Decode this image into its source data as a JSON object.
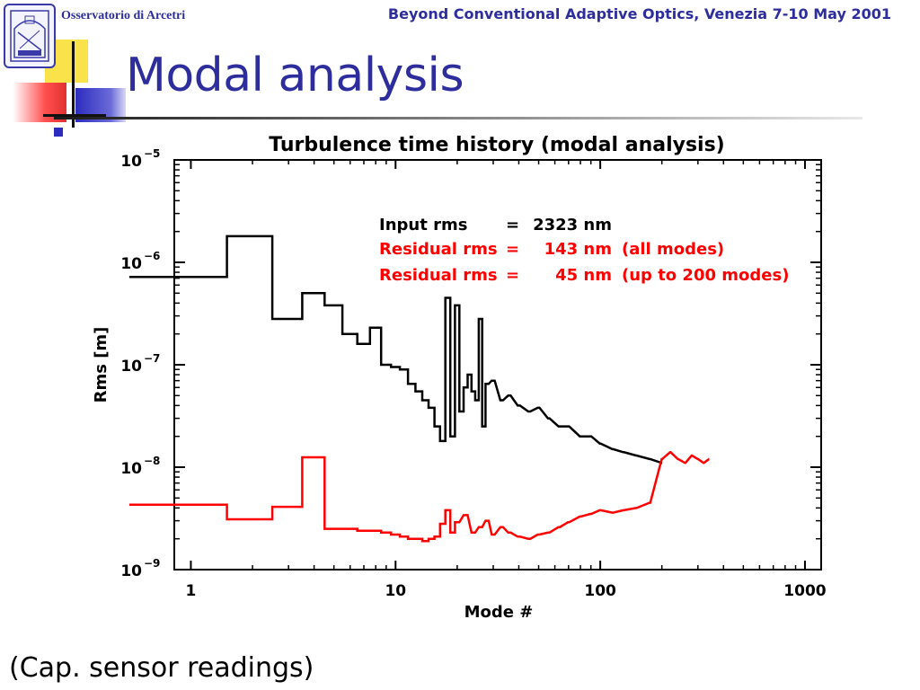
{
  "header": {
    "institution": "Osservatorio di Arcetri",
    "conference": "Beyond Conventional Adaptive Optics, Venezia 7-10 May 2001"
  },
  "slide": {
    "title": "Modal analysis",
    "caption": "(Cap. sensor readings)"
  },
  "colors": {
    "accent": "#2d2d9e",
    "series_input": "#000000",
    "series_residual": "#ff0000"
  },
  "chart_data": {
    "type": "line",
    "title": "Turbulence time history (modal analysis)",
    "xlabel": "Mode #",
    "ylabel": "Rms [m]",
    "x_scale": "log",
    "y_scale": "log",
    "xlim": [
      0.83,
      1200
    ],
    "ylim": [
      1e-09,
      1e-05
    ],
    "x_ticks": [
      1,
      10,
      100,
      1000
    ],
    "x_tick_labels": [
      "1",
      "10",
      "100",
      "1000"
    ],
    "y_ticks": [
      1e-09,
      1e-08,
      1e-07,
      1e-06,
      1e-05
    ],
    "y_tick_labels": [
      {
        "base": "10",
        "exp": "−9"
      },
      {
        "base": "10",
        "exp": "−8"
      },
      {
        "base": "10",
        "exp": "−7"
      },
      {
        "base": "10",
        "exp": "−6"
      },
      {
        "base": "10",
        "exp": "−5"
      }
    ],
    "grid": false,
    "annotations": [
      {
        "label": "Input rms",
        "eq": "=",
        "value": "2323 nm",
        "note": "",
        "color": "#000000"
      },
      {
        "label": "Residual rms",
        "eq": "=",
        "value": "143 nm",
        "note": "(all modes)",
        "color": "#ff0000"
      },
      {
        "label": "Residual rms",
        "eq": "=",
        "value": "45 nm",
        "note": "(up to 200 modes)",
        "color": "#ff0000"
      }
    ],
    "series": [
      {
        "color": "#000000",
        "style": "steps",
        "x": [
          1,
          2,
          3,
          4,
          5,
          6,
          7,
          8,
          9,
          10,
          11,
          12,
          13,
          14,
          15,
          16,
          17,
          18,
          19,
          20,
          21,
          22,
          23,
          24,
          25,
          26,
          27,
          28,
          30,
          33,
          36,
          40,
          45,
          50,
          56,
          63,
          70,
          80,
          90,
          100,
          115,
          130,
          150,
          175,
          200
        ],
        "y": [
          7.2e-07,
          1.8e-06,
          2.8e-07,
          5e-07,
          3.8e-07,
          2e-07,
          1.6e-07,
          2.3e-07,
          1e-07,
          9.5e-08,
          9e-08,
          6.5e-08,
          5.5e-08,
          4.5e-08,
          3.8e-08,
          2.5e-08,
          1.8e-08,
          4.5e-07,
          2e-08,
          3.8e-07,
          3.5e-08,
          6e-08,
          8e-08,
          5.5e-08,
          4.5e-08,
          2.8e-07,
          2.5e-08,
          6.5e-08,
          7e-08,
          4.5e-08,
          5e-08,
          4e-08,
          3.5e-08,
          3.8e-08,
          3e-08,
          2.5e-08,
          2.5e-08,
          2e-08,
          2e-08,
          1.7e-08,
          1.5e-08,
          1.4e-08,
          1.3e-08,
          1.2e-08,
          1.1e-08
        ]
      },
      {
        "color": "#ff0000",
        "style": "steps",
        "x": [
          1,
          2,
          3,
          4,
          5,
          6,
          7,
          8,
          9,
          10,
          11,
          12,
          13,
          14,
          15,
          16,
          17,
          18,
          19,
          20,
          22,
          24,
          26,
          28,
          30,
          33,
          36,
          40,
          45,
          50,
          56,
          63,
          70,
          80,
          90,
          100,
          115,
          130,
          150,
          175,
          200,
          220,
          240,
          260,
          280,
          300,
          320,
          340
        ],
        "y": [
          4.3e-09,
          3.1e-09,
          4.1e-09,
          1.25e-08,
          2.5e-09,
          2.5e-09,
          2.4e-09,
          2.4e-09,
          2.3e-09,
          2.2e-09,
          2.1e-09,
          2e-09,
          2e-09,
          1.9e-09,
          2e-09,
          2.1e-09,
          2.8e-09,
          3.8e-09,
          2.3e-09,
          2.9e-09,
          3.4e-09,
          2.3e-09,
          2.6e-09,
          3e-09,
          2.2e-09,
          2.6e-09,
          2.3e-09,
          2.1e-09,
          2e-09,
          2.2e-09,
          2.3e-09,
          2.6e-09,
          2.9e-09,
          3.3e-09,
          3.5e-09,
          3.8e-09,
          3.6e-09,
          3.8e-09,
          4e-09,
          4.5e-09,
          1.2e-08,
          1.4e-08,
          1.2e-08,
          1.1e-08,
          1.3e-08,
          1.2e-08,
          1.1e-08,
          1.2e-08
        ]
      }
    ]
  }
}
